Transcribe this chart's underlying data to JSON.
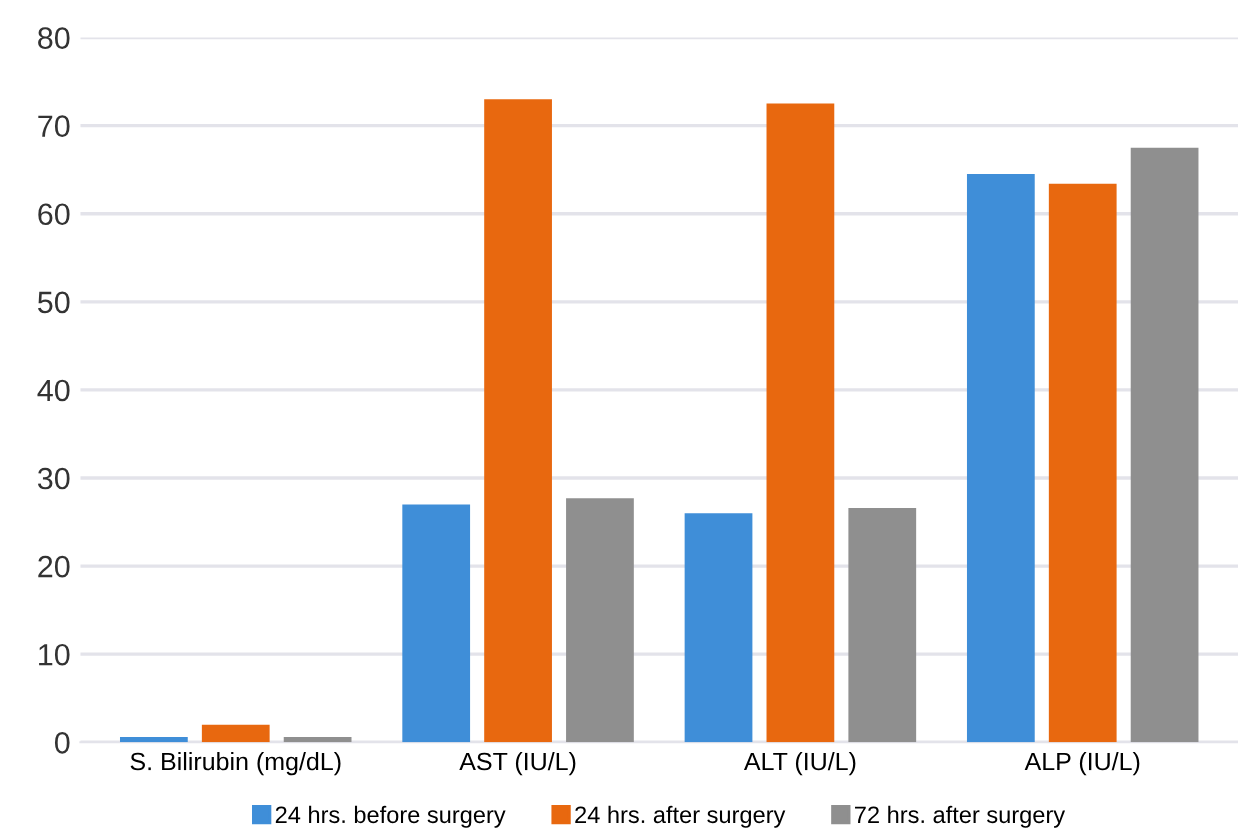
{
  "chart_data": {
    "type": "bar",
    "categories": [
      "S. Bilirubin (mg/dL)",
      "AST (IU/L)",
      "ALT (IU/L)",
      "ALP (IU/L)"
    ],
    "series": [
      {
        "name": "24 hrs. before surgery",
        "color": "#3f8ed8",
        "values": [
          0.6,
          27,
          26,
          64.5
        ]
      },
      {
        "name": "24 hrs. after surgery",
        "color": "#e8680f",
        "values": [
          2,
          73,
          72.5,
          63.4
        ]
      },
      {
        "name": "72 hrs. after surgery",
        "color": "#8f8f8f",
        "values": [
          0.6,
          27.7,
          26.6,
          67.5
        ]
      }
    ],
    "ylim": [
      0,
      80
    ],
    "yticks": [
      0,
      10,
      20,
      30,
      40,
      50,
      60,
      70,
      80
    ],
    "grid": "y",
    "legend": "bottom"
  }
}
